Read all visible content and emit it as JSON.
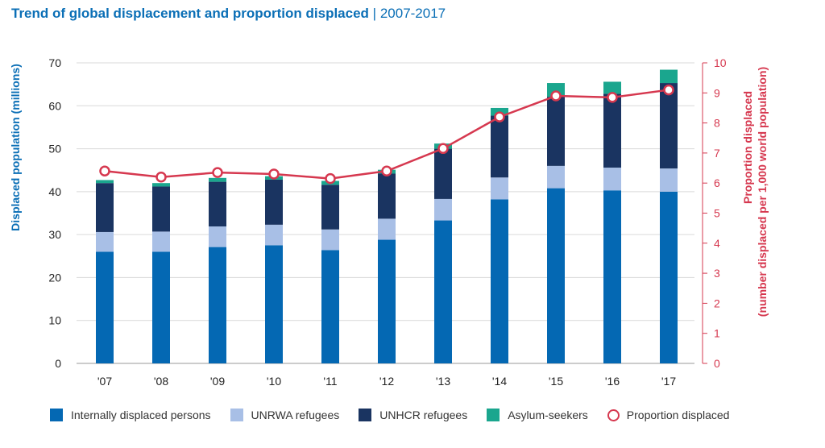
{
  "title": {
    "main": "Trend of global displacement and proportion displaced",
    "separator": "|",
    "range": "2007-2017"
  },
  "colors": {
    "idp": "#0468b3",
    "unrwa": "#a8bfe6",
    "unhcr": "#1a3461",
    "asylum": "#1aa68e",
    "proportion": "#d6384f",
    "title": "#0b6fb6"
  },
  "chart_data": {
    "type": "bar",
    "stacked": true,
    "categories": [
      "'07",
      "'08",
      "'09",
      "'10",
      "'11",
      "'12",
      "'13",
      "'14",
      "'15",
      "'16",
      "'17"
    ],
    "series": [
      {
        "name": "Internally displaced persons",
        "axis": "left",
        "values": [
          26.0,
          26.0,
          27.1,
          27.5,
          26.4,
          28.8,
          33.3,
          38.2,
          40.8,
          40.3,
          40.0
        ]
      },
      {
        "name": "UNRWA refugees",
        "axis": "left",
        "values": [
          4.6,
          4.7,
          4.8,
          4.8,
          4.8,
          4.9,
          5.0,
          5.1,
          5.2,
          5.3,
          5.4
        ]
      },
      {
        "name": "UNHCR refugees",
        "axis": "left",
        "values": [
          11.4,
          10.5,
          10.4,
          10.5,
          10.4,
          10.5,
          11.7,
          14.4,
          16.1,
          17.2,
          19.9
        ]
      },
      {
        "name": "Asylum-seekers",
        "axis": "left",
        "values": [
          0.7,
          0.8,
          0.9,
          0.8,
          0.9,
          0.9,
          1.2,
          1.8,
          3.2,
          2.8,
          3.1
        ]
      },
      {
        "name": "Proportion displaced",
        "type": "line",
        "axis": "right",
        "values": [
          6.4,
          6.2,
          6.35,
          6.3,
          6.15,
          6.4,
          7.15,
          8.2,
          8.9,
          8.85,
          9.1
        ]
      }
    ],
    "ylabel": "Displaced population (millions)",
    "ylim": [
      0,
      70
    ],
    "yticks": [
      "0",
      "10",
      "20",
      "30",
      "40",
      "50",
      "60",
      "70"
    ],
    "y2label_line1": "Proportion displaced",
    "y2label_line2": "(number displaced per 1,000 world population)",
    "y2lim": [
      0,
      10
    ],
    "y2ticks": [
      "0",
      "1",
      "2",
      "3",
      "4",
      "5",
      "6",
      "7",
      "8",
      "9",
      "10"
    ],
    "grid": true,
    "legend_position": "bottom"
  }
}
